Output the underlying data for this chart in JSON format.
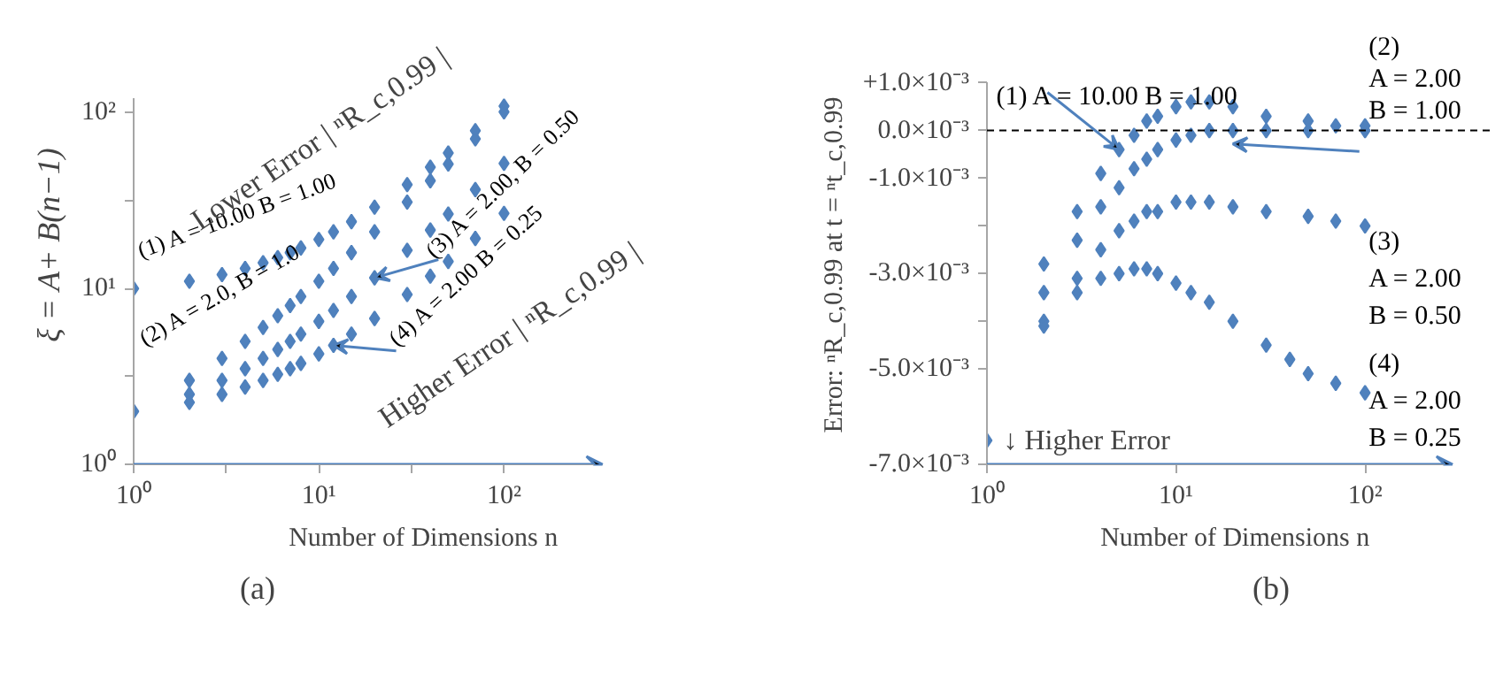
{
  "chart_data": [
    {
      "type": "scatter",
      "title": "(a)",
      "xlabel": "Number of Dimensions  n",
      "ylabel": "ξ = A+ B(n−1)",
      "log": "xy",
      "grid": false,
      "marker": "diamond",
      "xlim": [
        1,
        340
      ],
      "ylim": [
        1,
        120
      ],
      "xticks": [
        {
          "value": 1,
          "label": "10⁰"
        },
        {
          "value": 3.162,
          "label": null
        },
        {
          "value": 10,
          "label": "10¹"
        },
        {
          "value": 31.62,
          "label": null
        },
        {
          "value": 100,
          "label": "10²"
        }
      ],
      "yticks": [
        {
          "value": 1,
          "label": "10⁰"
        },
        {
          "value": 3.162,
          "label": null
        },
        {
          "value": 10,
          "label": "10¹"
        },
        {
          "value": 31.62,
          "label": null
        },
        {
          "value": 100,
          "label": "10²"
        }
      ],
      "annotations": [
        "Lower Error | ⁿR_c,0.99 |",
        "Higher Error | ⁿR_c,0.99 |"
      ],
      "series": [
        {
          "name": "(1) A = 10.00  B = 1.00",
          "color": "#4f81bd",
          "x": [
            1,
            2,
            3,
            4,
            5,
            6,
            7,
            8,
            10,
            12,
            15,
            20,
            30,
            40,
            50,
            70,
            100
          ],
          "values": [
            10,
            11,
            12,
            13,
            14,
            15,
            16,
            17,
            19,
            21,
            24,
            29,
            39,
            49,
            59,
            79,
            109
          ]
        },
        {
          "name": "(2) A = 2.0,  B = 1.0",
          "color": "#4f81bd",
          "x": [
            1,
            2,
            3,
            4,
            5,
            6,
            7,
            8,
            10,
            12,
            15,
            20,
            30,
            40,
            50,
            70,
            100
          ],
          "values": [
            2,
            3,
            4,
            5,
            6,
            7,
            8,
            9,
            11,
            13,
            16,
            21,
            31,
            41,
            51,
            71,
            101
          ]
        },
        {
          "name": "(3) A = 2.00,  B = 0.50",
          "color": "#4f81bd",
          "x": [
            2,
            3,
            4,
            5,
            6,
            7,
            8,
            10,
            12,
            15,
            20,
            30,
            40,
            50,
            70,
            100
          ],
          "values": [
            2.5,
            3,
            3.5,
            4,
            4.5,
            5,
            5.5,
            6.5,
            7.5,
            9,
            11.5,
            16.5,
            21.5,
            26.5,
            36.5,
            51.5
          ]
        },
        {
          "name": "(4) A = 2.00  B = 0.25",
          "color": "#4f81bd",
          "x": [
            2,
            3,
            4,
            5,
            6,
            7,
            8,
            10,
            12,
            15,
            20,
            30,
            40,
            50,
            70,
            100
          ],
          "values": [
            2.25,
            2.5,
            2.75,
            3,
            3.25,
            3.5,
            3.75,
            4.25,
            4.75,
            5.5,
            6.75,
            9.25,
            11.75,
            14.25,
            19.25,
            26.75
          ]
        }
      ]
    },
    {
      "type": "scatter",
      "title": "(b)",
      "xlabel": "Number of Dimensions  n",
      "ylabel": "Error:  ⁿR_c,0.99     at  t = ⁿt_c,0.99",
      "log": "x",
      "grid": false,
      "marker": "diamond",
      "xlim": [
        1,
        290
      ],
      "ylim": [
        -0.007,
        0.001
      ],
      "xticks": [
        {
          "value": 1,
          "label": "10⁰"
        },
        {
          "value": 10,
          "label": "10¹"
        },
        {
          "value": 100,
          "label": "10²"
        }
      ],
      "yticks": [
        {
          "value": 0.001,
          "label": "+1.0×10⁻³"
        },
        {
          "value": 0,
          "label": "0.0×10⁻³"
        },
        {
          "value": -0.001,
          "label": "-1.0×10⁻³"
        },
        {
          "value": -0.002,
          "label": null
        },
        {
          "value": -0.003,
          "label": "-3.0×10⁻³"
        },
        {
          "value": -0.004,
          "label": null
        },
        {
          "value": -0.005,
          "label": "-5.0×10⁻³"
        },
        {
          "value": -0.007,
          "label": "-7.0×10⁻³"
        }
      ],
      "ref_lines": [
        {
          "axis": "y",
          "value": 0,
          "color": "#000000",
          "line_style": "dashed"
        }
      ],
      "annotations": [
        "↓ Higher Error"
      ],
      "series": [
        {
          "name": "(1) A = 10.00   B =   1.00",
          "color": "#4f81bd",
          "x": [
            1,
            2,
            3,
            4,
            5,
            6,
            7,
            8,
            10,
            12,
            15,
            20,
            30,
            50,
            70,
            100
          ],
          "values": [
            -0.0065,
            -0.0028,
            -0.0017,
            -0.0009,
            -0.0004,
            -0.0001,
            0.0002,
            0.0003,
            0.0005,
            0.0006,
            0.0006,
            0.0005,
            0.0003,
            0.0002,
            0.0001,
            0.0001
          ]
        },
        {
          "name": "(2)\nA = 2.00\nB = 1.00",
          "color": "#4f81bd",
          "x": [
            2,
            3,
            4,
            5,
            6,
            7,
            8,
            10,
            12,
            15,
            20,
            30,
            50,
            100
          ],
          "values": [
            -0.0034,
            -0.0023,
            -0.0016,
            -0.0012,
            -0.0008,
            -0.0006,
            -0.0004,
            -0.0002,
            -0.0001,
            0,
            0,
            0,
            0,
            0
          ]
        },
        {
          "name": "(3)\nA = 2.00\nB = 0.50",
          "color": "#4f81bd",
          "x": [
            2,
            3,
            4,
            5,
            6,
            7,
            8,
            10,
            12,
            15,
            20,
            30,
            50,
            70,
            100
          ],
          "values": [
            -0.004,
            -0.0031,
            -0.0025,
            -0.0021,
            -0.0019,
            -0.0017,
            -0.0017,
            -0.0015,
            -0.0015,
            -0.0015,
            -0.0016,
            -0.0017,
            -0.0018,
            -0.0019,
            -0.002
          ]
        },
        {
          "name": "(4)\nA = 2.00\nB = 0.25",
          "color": "#4f81bd",
          "x": [
            2,
            3,
            4,
            5,
            6,
            7,
            8,
            10,
            12,
            15,
            20,
            30,
            40,
            50,
            70,
            100
          ],
          "values": [
            -0.0041,
            -0.0034,
            -0.0031,
            -0.003,
            -0.0029,
            -0.0029,
            -0.003,
            -0.0032,
            -0.0034,
            -0.0036,
            -0.004,
            -0.0045,
            -0.0048,
            -0.0051,
            -0.0053,
            -0.0055
          ]
        }
      ]
    }
  ]
}
